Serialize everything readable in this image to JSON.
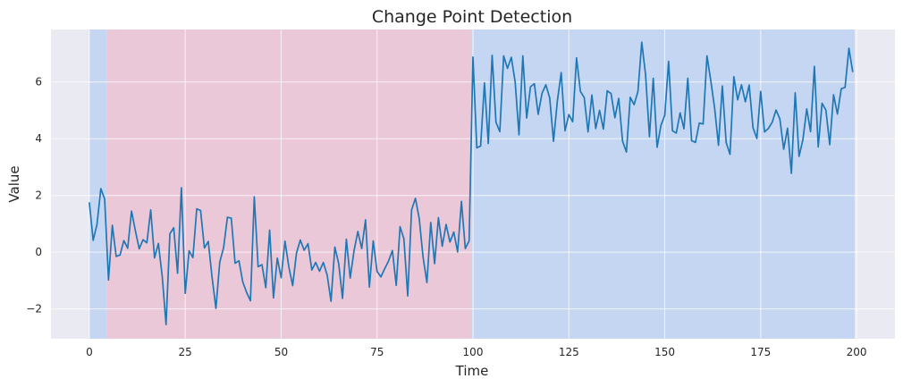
{
  "chart_data": {
    "type": "line",
    "title": "Change Point Detection",
    "xlabel": "Time",
    "ylabel": "Value",
    "xlim": [
      -10,
      210
    ],
    "ylim": [
      -3.05,
      7.85
    ],
    "xticks": [
      0,
      25,
      50,
      75,
      100,
      125,
      150,
      175,
      200
    ],
    "yticks": [
      -2,
      0,
      2,
      4,
      6
    ],
    "grid": true,
    "colors": {
      "background": "#eaeaf2",
      "grid": "#ffffff",
      "line": "#1f77b4",
      "segment_blue": "#c5d6f2",
      "segment_pink": "#ebc8d7"
    },
    "segments": [
      {
        "start": 0,
        "end": 4.5,
        "color": "segment_blue"
      },
      {
        "start": 4.5,
        "end": 99.5,
        "color": "segment_pink"
      },
      {
        "start": 99.5,
        "end": 199.5,
        "color": "segment_blue"
      }
    ],
    "series": [
      {
        "values": [
          1.76,
          0.42,
          0.98,
          2.24,
          1.87,
          -0.98,
          0.95,
          -0.15,
          -0.1,
          0.41,
          0.14,
          1.45,
          0.76,
          0.12,
          0.44,
          0.33,
          1.49,
          -0.2,
          0.31,
          -0.85,
          -2.55,
          0.65,
          0.86,
          -0.74,
          2.27,
          -1.45,
          0.05,
          -0.19,
          1.53,
          1.47,
          0.15,
          0.38,
          -0.89,
          -1.98,
          -0.35,
          0.16,
          1.23,
          1.2,
          -0.39,
          -0.3,
          -1.05,
          -1.42,
          -1.71,
          1.95,
          -0.51,
          -0.44,
          -1.25,
          0.78,
          -1.61,
          -0.21,
          -0.9,
          0.39,
          -0.51,
          -1.18,
          -0.03,
          0.43,
          0.07,
          0.3,
          -0.63,
          -0.36,
          -0.67,
          -0.36,
          -0.81,
          -1.73,
          0.18,
          -0.4,
          -1.63,
          0.46,
          -0.91,
          0.05,
          0.73,
          0.13,
          1.14,
          -1.23,
          0.4,
          -0.68,
          -0.87,
          -0.58,
          -0.31,
          0.06,
          -1.17,
          0.9,
          0.47,
          -1.54,
          1.49,
          1.9,
          1.18,
          -0.18,
          -1.07,
          1.05,
          -0.4,
          1.22,
          0.21,
          0.98,
          0.36,
          0.71,
          0.01,
          1.79,
          0.13,
          0.4,
          6.88,
          3.68,
          3.74,
          5.97,
          3.83,
          6.94,
          4.58,
          4.25,
          6.92,
          6.48,
          6.87,
          6.0,
          4.14,
          6.92,
          4.73,
          5.83,
          5.94,
          4.86,
          5.6,
          5.9,
          5.44,
          3.91,
          5.33,
          6.33,
          4.28,
          4.85,
          4.6,
          6.85,
          5.67,
          5.45,
          4.24,
          5.54,
          4.36,
          5.0,
          4.34,
          5.69,
          5.59,
          4.74,
          5.42,
          3.91,
          3.53,
          5.46,
          5.2,
          5.66,
          7.4,
          6.25,
          4.07,
          6.13,
          3.7,
          4.47,
          4.83,
          6.73,
          4.28,
          4.2,
          4.91,
          4.35,
          6.13,
          3.93,
          3.87,
          4.55,
          4.52,
          6.92,
          6.04,
          5.07,
          3.77,
          5.86,
          3.87,
          3.45,
          6.19,
          5.37,
          5.9,
          5.3,
          5.89,
          4.39,
          4.01,
          5.67,
          4.24,
          4.36,
          4.58,
          5.01,
          4.7,
          3.63,
          4.37,
          2.78,
          5.62,
          3.38,
          3.96,
          5.05,
          4.25,
          6.55,
          3.71,
          5.25,
          5.01,
          3.79,
          5.55,
          4.87,
          5.76,
          5.81,
          7.19,
          6.35
        ]
      }
    ]
  }
}
